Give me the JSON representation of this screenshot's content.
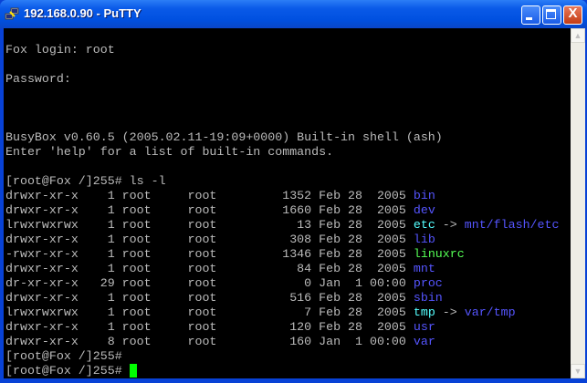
{
  "window": {
    "title": "192.168.0.90 - PuTTY",
    "close_label": "X"
  },
  "colors": {
    "text": "#bbbbbb",
    "dir": "#5555ff",
    "link": "#55ffff",
    "exec": "#55ff55",
    "cursor": "#00ff00"
  },
  "terminal": {
    "lines": [
      [],
      [
        {
          "t": "Fox login: root"
        }
      ],
      [],
      [
        {
          "t": "Password:"
        }
      ],
      [],
      [],
      [],
      [
        {
          "t": "BusyBox v0.60.5 (2005.02.11-19:09+0000) Built-in shell (ash)"
        }
      ],
      [
        {
          "t": "Enter 'help' for a list of built-in commands."
        }
      ],
      [],
      [
        {
          "t": "[root@Fox /]255# ls -l"
        }
      ],
      [
        {
          "t": "drwxr-xr-x    1 root     root         1352 Feb 28  2005 "
        },
        {
          "t": "bin",
          "c": "dir"
        }
      ],
      [
        {
          "t": "drwxr-xr-x    1 root     root         1660 Feb 28  2005 "
        },
        {
          "t": "dev",
          "c": "dir"
        }
      ],
      [
        {
          "t": "lrwxrwxrwx    1 root     root           13 Feb 28  2005 "
        },
        {
          "t": "etc",
          "c": "link"
        },
        {
          "t": " -> "
        },
        {
          "t": "mnt/flash/etc",
          "c": "dir"
        }
      ],
      [
        {
          "t": "drwxr-xr-x    1 root     root          308 Feb 28  2005 "
        },
        {
          "t": "lib",
          "c": "dir"
        }
      ],
      [
        {
          "t": "-rwxr-xr-x    1 root     root         1346 Feb 28  2005 "
        },
        {
          "t": "linuxrc",
          "c": "exec"
        }
      ],
      [
        {
          "t": "drwxr-xr-x    1 root     root           84 Feb 28  2005 "
        },
        {
          "t": "mnt",
          "c": "dir"
        }
      ],
      [
        {
          "t": "dr-xr-xr-x   29 root     root            0 Jan  1 00:00 "
        },
        {
          "t": "proc",
          "c": "dir"
        }
      ],
      [
        {
          "t": "drwxr-xr-x    1 root     root          516 Feb 28  2005 "
        },
        {
          "t": "sbin",
          "c": "dir"
        }
      ],
      [
        {
          "t": "lrwxrwxrwx    1 root     root            7 Feb 28  2005 "
        },
        {
          "t": "tmp",
          "c": "link"
        },
        {
          "t": " -> "
        },
        {
          "t": "var/tmp",
          "c": "dir"
        }
      ],
      [
        {
          "t": "drwxr-xr-x    1 root     root          120 Feb 28  2005 "
        },
        {
          "t": "usr",
          "c": "dir"
        }
      ],
      [
        {
          "t": "drwxr-xr-x    8 root     root          160 Jan  1 00:00 "
        },
        {
          "t": "var",
          "c": "dir"
        }
      ],
      [
        {
          "t": "[root@Fox /]255#"
        }
      ],
      [
        {
          "t": "[root@Fox /]255# "
        },
        {
          "cursor": true
        }
      ]
    ]
  }
}
